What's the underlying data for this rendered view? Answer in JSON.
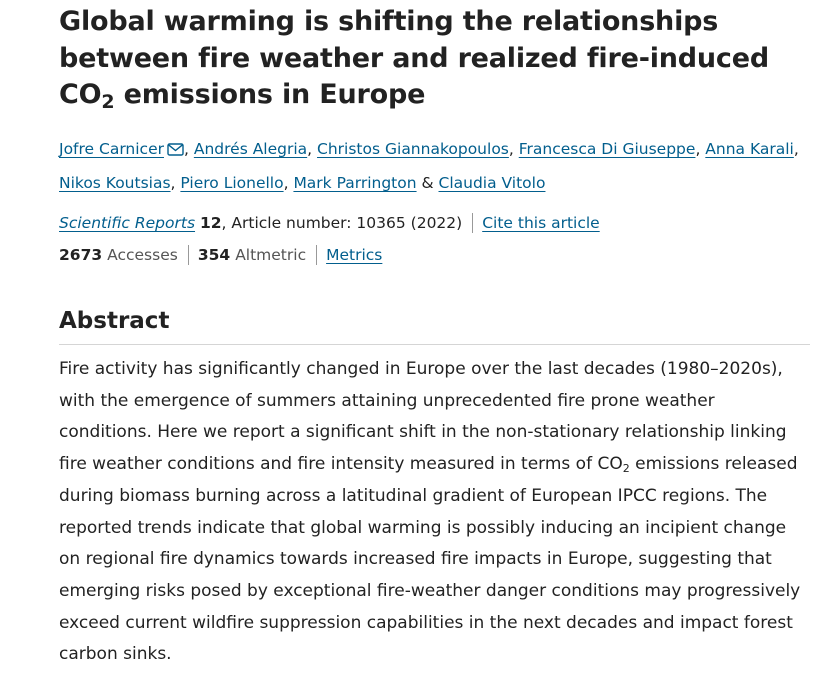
{
  "article": {
    "title_part1": "Global warming is shifting the relationships between fire weather and realized fire-induced CO",
    "title_sub": "2",
    "title_part2": " emissions in Europe"
  },
  "authors": [
    "Jofre Carnicer",
    "Andrés Alegria",
    "Christos Giannakopoulos",
    "Francesca Di Giuseppe",
    "Anna Karali",
    "Nikos Koutsias",
    "Piero Lionello",
    "Mark Parrington",
    "Claudia Vitolo"
  ],
  "author_separators": {
    "comma": ", ",
    "ampersand": " & "
  },
  "citation": {
    "journal": "Scientific Reports",
    "volume": "12",
    "article_number": ", Article number: 10365 (2022)",
    "cite_link": "Cite this article"
  },
  "metrics": {
    "accesses_value": "2673",
    "accesses_label": "Accesses",
    "altmetric_value": "354",
    "altmetric_label": "Altmetric",
    "metrics_link": "Metrics"
  },
  "abstract": {
    "heading": "Abstract",
    "text_part1": "Fire activity has significantly changed in Europe over the last decades (1980–2020s), with the emergence of summers attaining unprecedented fire prone weather conditions. Here we report a significant shift in the non-stationary relationship linking fire weather conditions and fire intensity measured in terms of CO",
    "text_sub": "2",
    "text_part2": " emissions released during biomass burning across a latitudinal gradient of European IPCC regions. The reported trends indicate that global warming is possibly inducing an incipient change on regional fire dynamics towards increased fire impacts in Europe, suggesting that emerging risks posed by exceptional fire-weather danger conditions may progressively exceed current wildfire suppression capabilities in the next decades and impact forest carbon sinks."
  },
  "colors": {
    "link": "#025e8d",
    "text": "#222222",
    "muted": "#555555"
  },
  "icons": {
    "corresponding_author": "mail-icon"
  }
}
